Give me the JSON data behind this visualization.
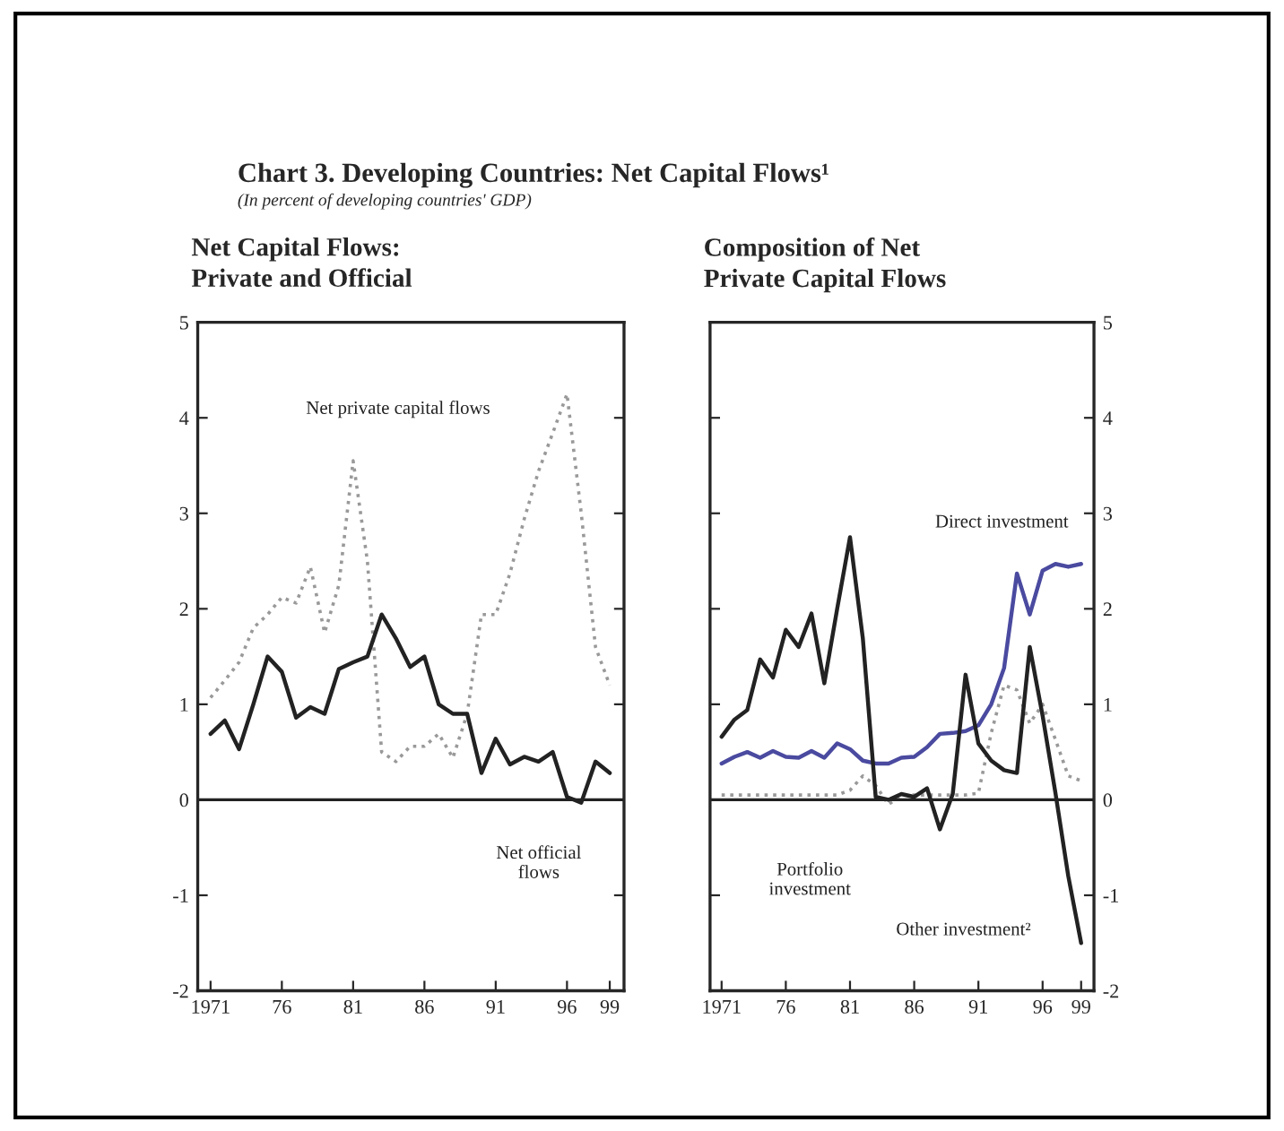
{
  "chart_data": [
    {
      "type": "line",
      "title": "Chart 3. Developing Countries: Net Capital Flows¹",
      "subtitle": "(In percent of developing countries' GDP)",
      "x": [
        1971,
        1972,
        1973,
        1974,
        1975,
        1976,
        1977,
        1978,
        1979,
        1980,
        1981,
        1982,
        1983,
        1984,
        1985,
        1986,
        1987,
        1988,
        1989,
        1990,
        1991,
        1992,
        1993,
        1994,
        1995,
        1996,
        1997,
        1998,
        1999
      ],
      "series": [
        {
          "color": "#999999",
          "line_style": "dotted",
          "values": [
            1.07,
            1.25,
            1.44,
            1.8,
            1.94,
            2.12,
            2.06,
            2.44,
            1.75,
            2.25,
            3.55,
            2.5,
            0.5,
            0.4,
            0.56,
            0.56,
            0.69,
            0.44,
            0.9,
            1.94,
            1.94,
            2.37,
            2.94,
            3.44,
            3.84,
            4.25,
            3.0,
            1.6,
            1.2
          ]
        },
        {
          "color": "#222222",
          "line_style": "solid",
          "values": [
            0.69,
            0.83,
            0.53,
            1.0,
            1.5,
            1.34,
            0.86,
            0.97,
            0.9,
            1.37,
            1.44,
            1.5,
            1.94,
            1.69,
            1.39,
            1.5,
            1.0,
            0.9,
            0.9,
            0.28,
            0.64,
            0.37,
            0.45,
            0.4,
            0.5,
            0.03,
            -0.03,
            0.4,
            0.28
          ]
        }
      ],
      "annotations": [
        "Net Capital Flows:\nPrivate and Official",
        "Net private capital flows",
        "Net official\nflows"
      ],
      "xlim": [
        1970.1,
        2000
      ],
      "ylim": [
        -2,
        5
      ],
      "xticks": [
        1971,
        {
          "value": 1976,
          "label": "76"
        },
        {
          "value": 1981,
          "label": "81"
        },
        {
          "value": 1986,
          "label": "86"
        },
        {
          "value": 1991,
          "label": "91"
        },
        {
          "value": 1996,
          "label": "96"
        },
        {
          "value": 1999,
          "label": "99"
        }
      ],
      "yticks": [
        -2,
        -1,
        0,
        1,
        2,
        3,
        4,
        5
      ],
      "ref_lines": [
        {
          "axis": "y",
          "value": 0,
          "color": "#222222"
        }
      ],
      "grid": false,
      "legend": false
    },
    {
      "type": "line",
      "x": [
        1971,
        1972,
        1973,
        1974,
        1975,
        1976,
        1977,
        1978,
        1979,
        1980,
        1981,
        1982,
        1983,
        1984,
        1985,
        1986,
        1987,
        1988,
        1989,
        1990,
        1991,
        1992,
        1993,
        1994,
        1995,
        1996,
        1997,
        1998,
        1999
      ],
      "series": [
        {
          "color": "#4a4aa0",
          "line_style": "solid",
          "values": [
            0.38,
            0.45,
            0.5,
            0.44,
            0.51,
            0.45,
            0.44,
            0.51,
            0.44,
            0.59,
            0.53,
            0.41,
            0.38,
            0.38,
            0.44,
            0.45,
            0.55,
            0.69,
            0.7,
            0.72,
            0.78,
            1.0,
            1.38,
            2.37,
            1.94,
            2.4,
            2.47,
            2.44,
            2.47
          ]
        },
        {
          "color": "#999999",
          "line_style": "dotted",
          "values": [
            0.05,
            0.05,
            0.05,
            0.05,
            0.05,
            0.05,
            0.05,
            0.05,
            0.05,
            0.05,
            0.1,
            0.25,
            0.15,
            -0.05,
            0.05,
            0.05,
            0.05,
            0.05,
            0.05,
            0.05,
            0.07,
            0.7,
            1.2,
            1.15,
            0.8,
            1.0,
            0.63,
            0.25,
            0.2
          ]
        },
        {
          "color": "#222222",
          "line_style": "solid",
          "values": [
            0.66,
            0.84,
            0.94,
            1.47,
            1.28,
            1.78,
            1.6,
            1.95,
            1.22,
            2.0,
            2.75,
            1.69,
            0.03,
            0.0,
            0.06,
            0.03,
            0.12,
            -0.31,
            0.06,
            1.31,
            0.59,
            0.41,
            0.31,
            0.28,
            1.6,
            0.88,
            0.07,
            -0.8,
            -1.5
          ]
        }
      ],
      "annotations": [
        "Composition of Net\nPrivate Capital Flows",
        "Direct investment",
        "Portfolio\ninvestment",
        "Other investment²"
      ],
      "xlim": [
        1970.1,
        2000
      ],
      "ylim": [
        -2,
        5
      ],
      "xticks": [
        1971,
        {
          "value": 1976,
          "label": "76"
        },
        {
          "value": 1981,
          "label": "81"
        },
        {
          "value": 1986,
          "label": "86"
        },
        {
          "value": 1991,
          "label": "91"
        },
        {
          "value": 1996,
          "label": "96"
        },
        {
          "value": 1999,
          "label": "99"
        }
      ],
      "yticks": [
        -2,
        -1,
        0,
        1,
        2,
        3,
        4,
        5
      ],
      "ref_lines": [
        {
          "axis": "y",
          "value": 0,
          "color": "#222222"
        }
      ],
      "grid": false,
      "legend": false
    }
  ]
}
